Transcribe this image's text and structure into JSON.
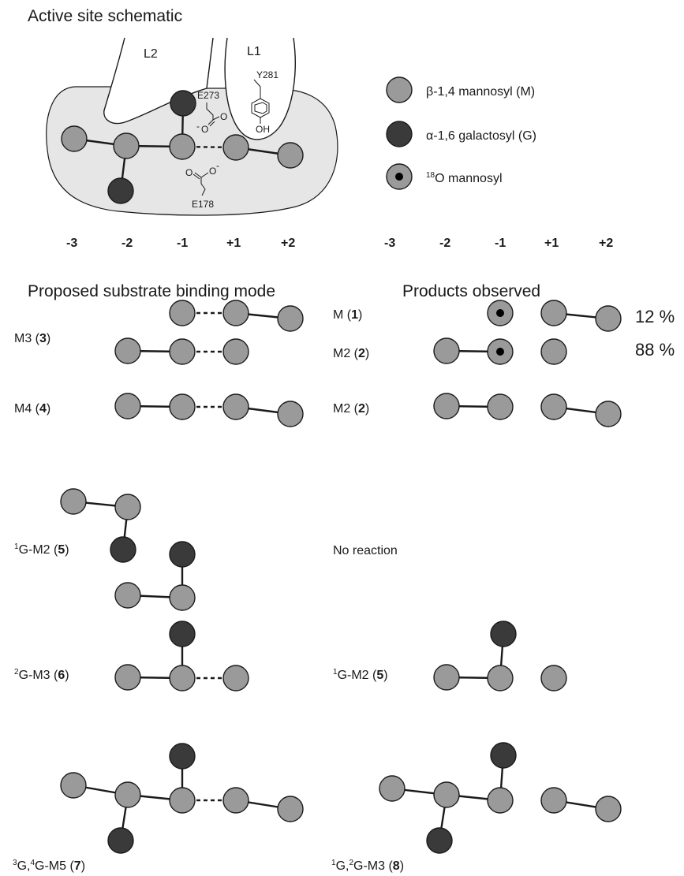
{
  "section_titles": {
    "active_site": "Active site schematic",
    "binding_mode": "Proposed substrate binding mode",
    "products": "Products observed"
  },
  "loops": {
    "l2": "L2",
    "l1": "L1"
  },
  "residues": {
    "e273": "E273",
    "e178": "E178",
    "y281": "Y281",
    "oh": "OH",
    "o": "O",
    "o_minus": "-"
  },
  "legend": [
    {
      "label": "β-1,4 mannosyl (M)",
      "kind": "mannosyl",
      "color": "#9a9a9a"
    },
    {
      "label": "α-1,6 galactosyl (G)",
      "kind": "galactosyl",
      "color": "#3a3a3a"
    },
    {
      "sup": "18",
      "label": "O mannosyl",
      "kind": "o18-mannosyl"
    }
  ],
  "subsites": [
    "-3",
    "-2",
    "-1",
    "+1",
    "+2"
  ],
  "substrates": [
    {
      "pre": "",
      "name": "M3 (",
      "num": "3",
      "post": ")"
    },
    {
      "pre": "",
      "name": "M4 (",
      "num": "4",
      "post": ")"
    },
    {
      "pre": "1",
      "name": "G-M2 (",
      "num": "5",
      "post": ")"
    },
    {
      "pre": "2",
      "name": "G-M3 (",
      "num": "6",
      "post": ")"
    },
    {
      "pre": "3",
      "name": "G,",
      "pre2": "4",
      "name2": "G-M5 (",
      "num": "7",
      "post": ")"
    }
  ],
  "products": [
    {
      "pre": "",
      "name": "M (",
      "num": "1",
      "post": ")",
      "percent": "12 %"
    },
    {
      "pre": "",
      "name": "M2 (",
      "num": "2",
      "post": ")",
      "percent": "88 %"
    },
    {
      "pre": "",
      "name": "M2 (",
      "num": "2",
      "post": ")"
    },
    {
      "pre": "1",
      "name": "G-M2 (",
      "num": "5",
      "post": ")"
    },
    {
      "pre": "1",
      "name": "G,",
      "pre2": "2",
      "name2": "G-M3 (",
      "num": "8",
      "post": ")"
    }
  ],
  "no_reaction": "No reaction"
}
